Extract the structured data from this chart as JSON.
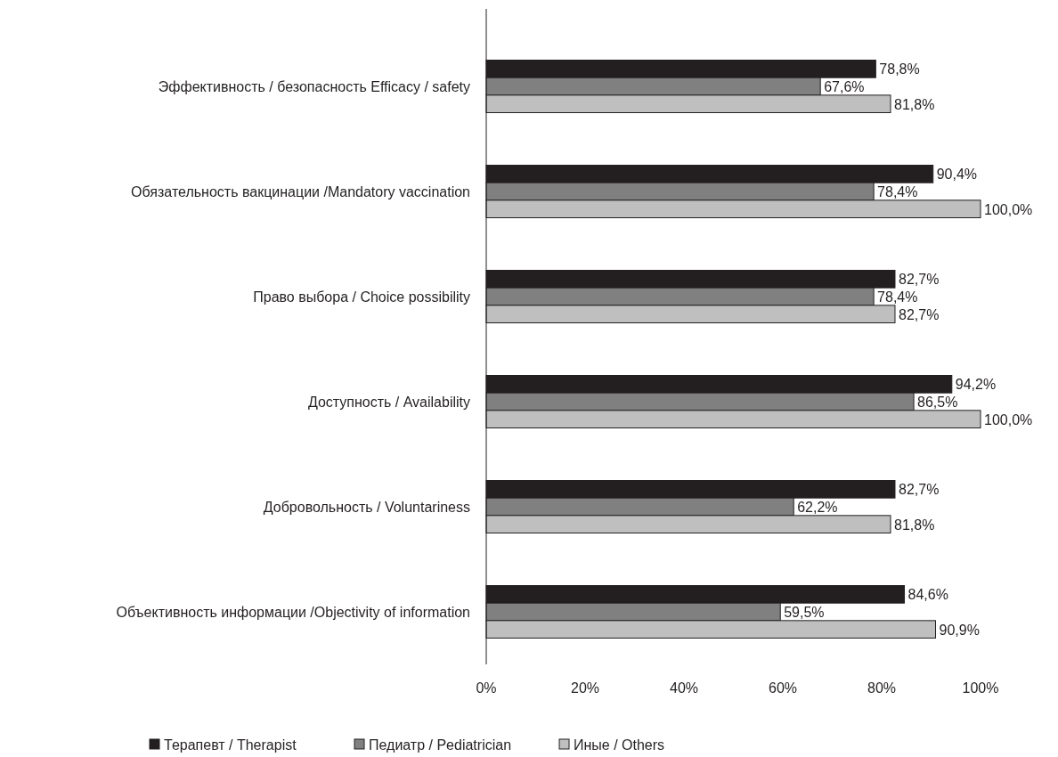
{
  "chart_data": {
    "type": "bar",
    "orientation": "horizontal",
    "categories": [
      "Эффективность / безопасность Efficacy / safety",
      "Обязательность вакцинации /Mandatory vaccination",
      "Право выбора / Choice possibility",
      "Доступность / Availability",
      "Добровольность / Voluntariness",
      "Объективность информации /Objectivity of information"
    ],
    "series": [
      {
        "name": "Терапевт / Therapist",
        "color": "#231f20",
        "values": [
          78.8,
          90.4,
          82.7,
          94.2,
          82.7,
          84.6
        ],
        "value_labels": [
          "78,8%",
          "90,4%",
          "82,7%",
          "94,2%",
          "82,7%",
          "84,6%"
        ]
      },
      {
        "name": "Педиатр / Pediatrician",
        "color": "#808080",
        "values": [
          67.6,
          78.4,
          78.4,
          86.5,
          62.2,
          59.5
        ],
        "value_labels": [
          "67,6%",
          "78,4%",
          "78,4%",
          "86,5%",
          "62,2%",
          "59,5%"
        ]
      },
      {
        "name": "Иные / Others",
        "color": "#bfbfbf",
        "values": [
          81.8,
          100,
          82.7,
          100,
          81.8,
          90.9
        ],
        "value_labels": [
          "81,8%",
          "100,0%",
          "82,7%",
          "100,0%",
          "81,8%",
          "90,9%"
        ]
      }
    ],
    "xlim": [
      0,
      100
    ],
    "xticks": [
      {
        "value": 0,
        "label": "0%"
      },
      {
        "value": 20,
        "label": "20%"
      },
      {
        "value": 40,
        "label": "40%"
      },
      {
        "value": 60,
        "label": "60%"
      },
      {
        "value": 80,
        "label": "80%"
      },
      {
        "value": 100,
        "label": "100%"
      }
    ],
    "legend": "bottom"
  }
}
